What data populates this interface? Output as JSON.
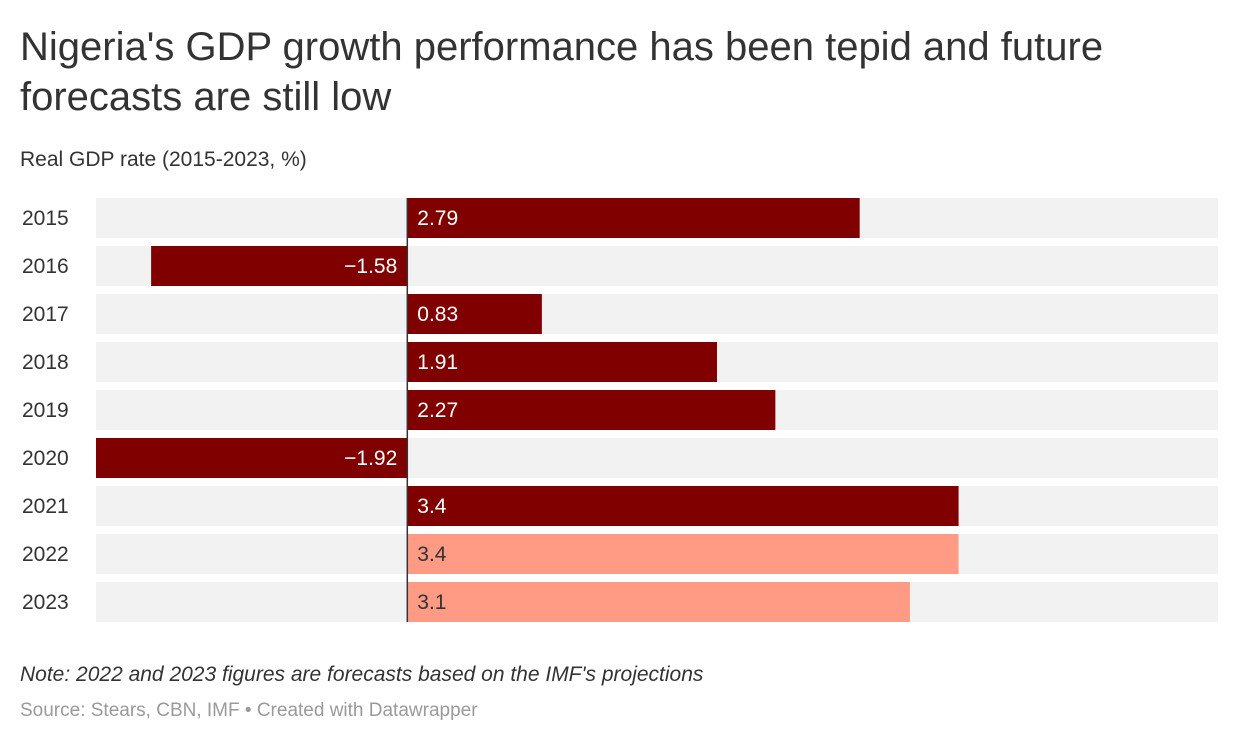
{
  "title": "Nigeria's GDP growth performance has been tepid and future forecasts are still low",
  "subtitle": "Real GDP rate (2015-2023, %)",
  "note": "Note: 2022 and 2023 figures are forecasts based on the IMF's projections",
  "source": "Source: Stears, CBN, IMF • Created with Datawrapper",
  "colors": {
    "actual": "#800000",
    "forecast": "#ff9b85",
    "track": "#f2f2f2",
    "axis": "#333333"
  },
  "chart_data": {
    "type": "bar",
    "orientation": "horizontal",
    "categories": [
      "2015",
      "2016",
      "2017",
      "2018",
      "2019",
      "2020",
      "2021",
      "2022",
      "2023"
    ],
    "values": [
      2.79,
      -1.58,
      0.83,
      1.91,
      2.27,
      -1.92,
      3.4,
      3.4,
      3.1
    ],
    "value_labels": [
      "2.79",
      "−1.58",
      "0.83",
      "1.91",
      "2.27",
      "−1.92",
      "3.4",
      "3.4",
      "3.1"
    ],
    "forecast": [
      false,
      false,
      false,
      false,
      false,
      false,
      false,
      true,
      true
    ],
    "xlim": [
      -1.92,
      5.0
    ],
    "grid": false,
    "legend": "none"
  }
}
